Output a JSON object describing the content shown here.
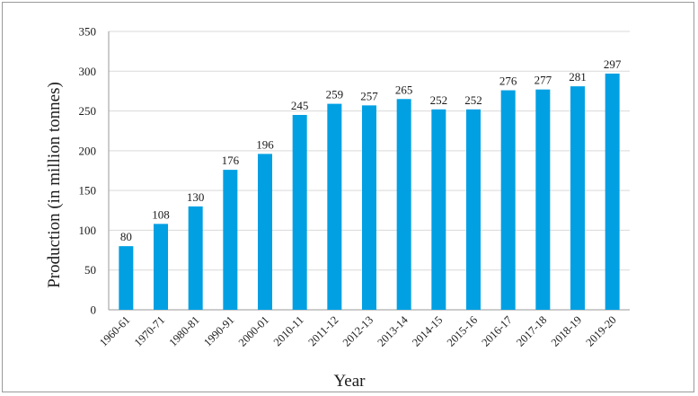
{
  "chart_data": {
    "type": "bar",
    "title": "",
    "xlabel": "Year",
    "ylabel": "Production (in million tonnes)",
    "ylim": [
      0,
      350
    ],
    "yticks": [
      0,
      50,
      100,
      150,
      200,
      250,
      300,
      350
    ],
    "grid": true,
    "legend": "none",
    "bar_color": "#00a0e3",
    "categories": [
      "1960-61",
      "1970-71",
      "1980-81",
      "1990-91",
      "2000-01",
      "2010-11",
      "2011-12",
      "2012-13",
      "2013-14",
      "2014-15",
      "2015-16",
      "2016-17",
      "2017-18",
      "2018-19",
      "2019-20"
    ],
    "values": [
      80,
      108,
      130,
      176,
      196,
      245,
      259,
      257,
      265,
      252,
      252,
      276,
      277,
      281,
      297
    ]
  }
}
